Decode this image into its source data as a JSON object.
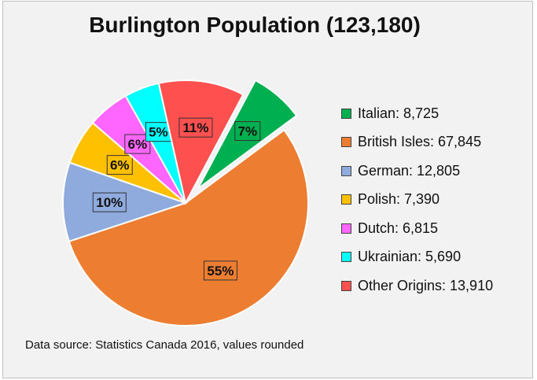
{
  "chart_data": {
    "type": "pie",
    "title": "Burlington Population (123,180)",
    "categories": [
      "Italian",
      "British Isles",
      "German",
      "Polish",
      "Dutch",
      "Ukrainian",
      "Other Origins"
    ],
    "values": [
      8725,
      67845,
      12805,
      7390,
      6815,
      5690,
      13910
    ],
    "percent_labels": [
      "7%",
      "55%",
      "10%",
      "6%",
      "6%",
      "5%",
      "11%"
    ],
    "legend_labels": [
      "Italian: 8,725",
      "British Isles: 67,845",
      "German: 12,805",
      "Polish: 7,390",
      "Dutch: 6,815",
      "Ukrainian: 5,690",
      "Other Origins: 13,910"
    ],
    "colors": [
      "#00b050",
      "#ed7d31",
      "#8faadc",
      "#ffc000",
      "#ff66ff",
      "#00ffff",
      "#ff5050"
    ],
    "label_colors": [
      "#00b050",
      "#ed7d31",
      "#8faadc",
      "#ffc000",
      "#ff66ff",
      "#00ffff",
      "#ff5050"
    ],
    "exploded": [
      "Italian"
    ],
    "legend_position": "right"
  },
  "source_note": "Data source: Statistics Canada 2016, values rounded"
}
